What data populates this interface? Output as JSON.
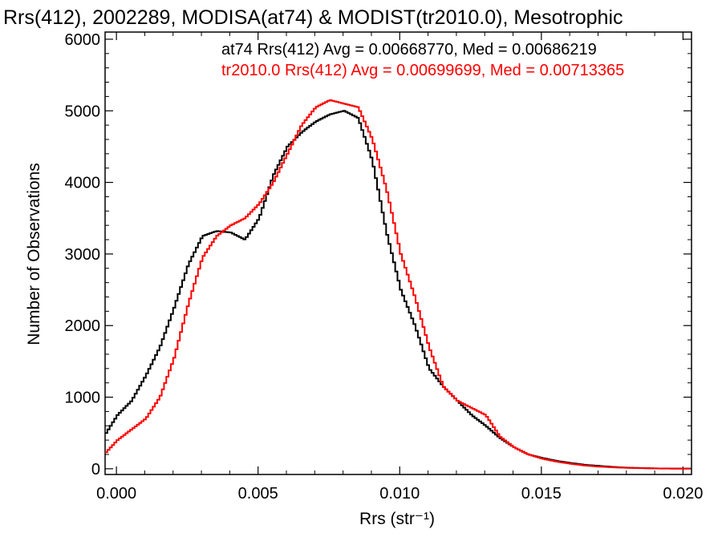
{
  "chart_data": {
    "type": "line",
    "title": "Rrs(412), 2002289, MODISA(at74) & MODIST(tr2010.0), Mesotrophic",
    "xlabel": "Rrs (str⁻¹)",
    "ylabel": "Number of Observations",
    "xlim": [
      -0.0004,
      0.0203
    ],
    "ylim": [
      -80,
      6100
    ],
    "x_ticks": [
      0.0,
      0.005,
      0.01,
      0.015,
      0.02
    ],
    "x_tick_labels": [
      "0.000",
      "0.005",
      "0.010",
      "0.015",
      "0.020"
    ],
    "y_ticks": [
      0,
      1000,
      2000,
      3000,
      4000,
      5000,
      6000
    ],
    "y_tick_labels": [
      "0",
      "1000",
      "2000",
      "3000",
      "4000",
      "5000",
      "6000"
    ],
    "grid": false,
    "legend_placement": "top-right",
    "line_style": "steps",
    "series": [
      {
        "name": "at74 Rrs(412) Avg = 0.00668770, Med = 0.00686219",
        "color": "#000000",
        "x": [
          -0.0004,
          0.0,
          0.0005,
          0.001,
          0.0015,
          0.002,
          0.0025,
          0.003,
          0.0035,
          0.004,
          0.0045,
          0.005,
          0.0055,
          0.006,
          0.0065,
          0.007,
          0.0075,
          0.008,
          0.0085,
          0.009,
          0.0095,
          0.01,
          0.0105,
          0.011,
          0.0115,
          0.012,
          0.0125,
          0.013,
          0.0135,
          0.014,
          0.0145,
          0.015,
          0.0155,
          0.016,
          0.0165,
          0.017,
          0.0175,
          0.018,
          0.0185,
          0.019,
          0.0195,
          0.0203
        ],
        "values": [
          500,
          750,
          950,
          1300,
          1700,
          2250,
          2850,
          3250,
          3320,
          3300,
          3200,
          3500,
          4100,
          4500,
          4700,
          4850,
          4950,
          5000,
          4900,
          4300,
          3300,
          2500,
          2000,
          1400,
          1150,
          950,
          750,
          600,
          430,
          300,
          200,
          150,
          110,
          80,
          55,
          40,
          25,
          15,
          10,
          5,
          3,
          2
        ]
      },
      {
        "name": "tr2010.0 Rrs(412) Avg = 0.00699699, Med = 0.00713365",
        "color": "#ff0000",
        "x": [
          -0.0004,
          0.0,
          0.0005,
          0.001,
          0.0015,
          0.002,
          0.0025,
          0.003,
          0.0035,
          0.004,
          0.0045,
          0.005,
          0.0055,
          0.006,
          0.0065,
          0.007,
          0.0075,
          0.008,
          0.0085,
          0.009,
          0.0095,
          0.01,
          0.0105,
          0.011,
          0.0115,
          0.012,
          0.0125,
          0.013,
          0.0135,
          0.014,
          0.0145,
          0.015,
          0.0155,
          0.016,
          0.0165,
          0.017,
          0.0175,
          0.018,
          0.0185,
          0.019,
          0.0195,
          0.0203
        ],
        "values": [
          230,
          400,
          550,
          700,
          1000,
          1550,
          2300,
          2950,
          3250,
          3400,
          3500,
          3700,
          4000,
          4400,
          4800,
          5050,
          5150,
          5100,
          5050,
          4600,
          3900,
          3000,
          2400,
          1700,
          1150,
          950,
          850,
          750,
          450,
          300,
          200,
          140,
          100,
          70,
          45,
          30,
          20,
          12,
          8,
          4,
          2,
          1
        ]
      }
    ]
  }
}
